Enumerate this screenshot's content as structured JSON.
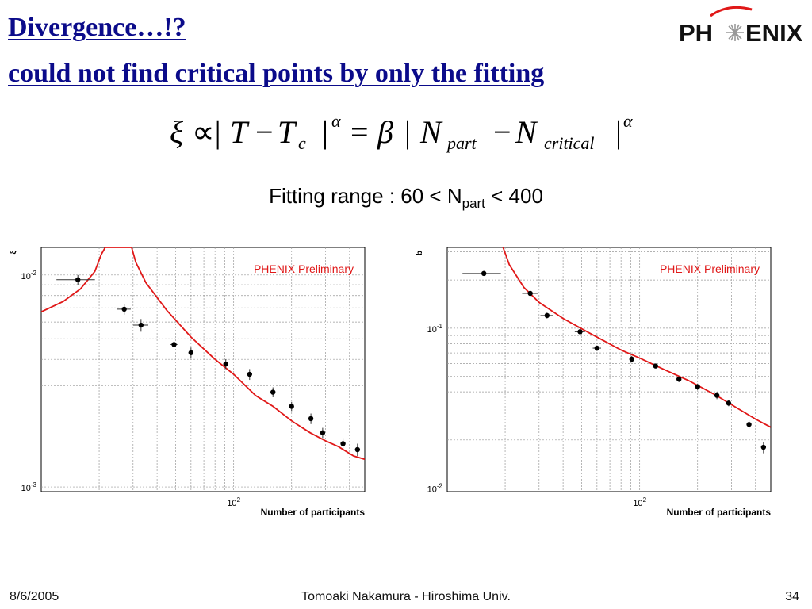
{
  "slide": {
    "title_line1": "Divergence…!?",
    "title_line2": "could not find critical points by only the fitting",
    "logo_text": "PHENIX",
    "formula": {
      "xi": "ξ",
      "propto": "∝|",
      "T": "T",
      "minus": "−",
      "Tc": "T",
      "c_sub": "c",
      "abs_close": "|",
      "alpha": "α",
      "equals": "=",
      "beta": "β",
      "abs_open": "|",
      "N": "N",
      "part": "part",
      "critical": "critical",
      "alpha2": "α"
    },
    "fit_range": {
      "prefix": "Fitting range : 60 < N",
      "sub": "part",
      "suffix": " < 400"
    },
    "footer": {
      "date": "8/6/2005",
      "author": "Tomoaki Nakamura - Hiroshima Univ.",
      "page": "34"
    }
  },
  "colors": {
    "title": "#0b0b8a",
    "fit_curve": "#e01818",
    "preliminary": "#e01818",
    "grid": "#999999",
    "points": "#000000"
  },
  "chart_data": [
    {
      "type": "scatter",
      "xscale": "log",
      "yscale": "log",
      "xlim": [
        10,
        480
      ],
      "ylim": [
        0.00095,
        0.0135
      ],
      "ylabel": "ξ",
      "xlabel": "Number of participants",
      "annotation": "PHENIX Preliminary",
      "y_ticks": [
        {
          "value": 0.01,
          "base": "10",
          "exp": "-2"
        },
        {
          "value": 0.001,
          "base": "10",
          "exp": "-3"
        }
      ],
      "x_ticks": [
        {
          "value": 100,
          "base": "10",
          "exp": "2"
        }
      ],
      "grid": true,
      "points": [
        {
          "x": 15.5,
          "y": 0.0095,
          "xerr": 3.5,
          "yerr": 0.0005
        },
        {
          "x": 27,
          "y": 0.0069,
          "xerr": 2.2,
          "yerr": 0.0004
        },
        {
          "x": 33,
          "y": 0.0058,
          "xerr": 3.0,
          "yerr": 0.0004
        },
        {
          "x": 49,
          "y": 0.0047,
          "xerr": 2.0,
          "yerr": 0.0003
        },
        {
          "x": 60,
          "y": 0.0043,
          "xerr": 1.8,
          "yerr": 0.00025
        },
        {
          "x": 91,
          "y": 0.0038,
          "xerr": 2.5,
          "yerr": 0.0002
        },
        {
          "x": 121,
          "y": 0.0034,
          "xerr": 3.5,
          "yerr": 0.0002
        },
        {
          "x": 160,
          "y": 0.0028,
          "xerr": 4.0,
          "yerr": 0.00015
        },
        {
          "x": 200,
          "y": 0.0024,
          "xerr": 5.0,
          "yerr": 0.00012
        },
        {
          "x": 252,
          "y": 0.0021,
          "xerr": 6.0,
          "yerr": 0.00012
        },
        {
          "x": 290,
          "y": 0.0018,
          "xerr": 6.0,
          "yerr": 0.0001
        },
        {
          "x": 370,
          "y": 0.0016,
          "xerr": 8.0,
          "yerr": 0.0001
        },
        {
          "x": 440,
          "y": 0.0015,
          "xerr": 8.0,
          "yerr": 0.0001
        }
      ],
      "fit_curve": [
        [
          10,
          0.0067
        ],
        [
          13,
          0.0075
        ],
        [
          16,
          0.0086
        ],
        [
          19,
          0.0104
        ],
        [
          20.5,
          0.0125
        ],
        [
          21.5,
          0.0135
        ],
        [
          29.5,
          0.0135
        ],
        [
          31,
          0.0115
        ],
        [
          35,
          0.0092
        ],
        [
          45,
          0.0068
        ],
        [
          60,
          0.0051
        ],
        [
          80,
          0.004
        ],
        [
          100,
          0.0034
        ],
        [
          130,
          0.0027
        ],
        [
          160,
          0.0024
        ],
        [
          200,
          0.00205
        ],
        [
          250,
          0.0018
        ],
        [
          300,
          0.00165
        ],
        [
          350,
          0.00155
        ],
        [
          420,
          0.0014
        ],
        [
          480,
          0.00135
        ]
      ]
    },
    {
      "type": "scatter",
      "xscale": "log",
      "yscale": "log",
      "xlim": [
        10,
        480
      ],
      "ylim": [
        0.0095,
        0.32
      ],
      "ylabel": "b",
      "xlabel": "Number of participants",
      "annotation": "PHENIX Preliminary",
      "y_ticks": [
        {
          "value": 0.1,
          "base": "10",
          "exp": "-1"
        },
        {
          "value": 0.01,
          "base": "10",
          "exp": "-2"
        }
      ],
      "x_ticks": [
        {
          "value": 100,
          "base": "10",
          "exp": "2"
        }
      ],
      "grid": true,
      "points": [
        {
          "x": 15.5,
          "y": 0.22,
          "xerr": 3.5,
          "yerr": 0.008
        },
        {
          "x": 27,
          "y": 0.165,
          "xerr": 2.5,
          "yerr": 0.006
        },
        {
          "x": 33,
          "y": 0.12,
          "xerr": 2.5,
          "yerr": 0.005
        },
        {
          "x": 49,
          "y": 0.095,
          "xerr": 3.0,
          "yerr": 0.004
        },
        {
          "x": 60,
          "y": 0.075,
          "xerr": 3.0,
          "yerr": 0.003
        },
        {
          "x": 91,
          "y": 0.064,
          "xerr": 2.5,
          "yerr": 0.003
        },
        {
          "x": 121,
          "y": 0.058,
          "xerr": 4.0,
          "yerr": 0.002
        },
        {
          "x": 160,
          "y": 0.048,
          "xerr": 4.0,
          "yerr": 0.002
        },
        {
          "x": 200,
          "y": 0.043,
          "xerr": 5.0,
          "yerr": 0.002
        },
        {
          "x": 252,
          "y": 0.038,
          "xerr": 5.0,
          "yerr": 0.002
        },
        {
          "x": 290,
          "y": 0.034,
          "xerr": 5.0,
          "yerr": 0.0015
        },
        {
          "x": 370,
          "y": 0.025,
          "xerr": 6.0,
          "yerr": 0.0015
        },
        {
          "x": 440,
          "y": 0.018,
          "xerr": 6.0,
          "yerr": 0.0015
        }
      ],
      "fit_curve": [
        [
          19.5,
          0.32
        ],
        [
          21,
          0.25
        ],
        [
          25,
          0.18
        ],
        [
          30,
          0.145
        ],
        [
          40,
          0.115
        ],
        [
          55,
          0.093
        ],
        [
          80,
          0.073
        ],
        [
          100,
          0.065
        ],
        [
          130,
          0.056
        ],
        [
          180,
          0.047
        ],
        [
          250,
          0.038
        ],
        [
          330,
          0.031
        ],
        [
          400,
          0.027
        ],
        [
          480,
          0.024
        ]
      ]
    }
  ]
}
